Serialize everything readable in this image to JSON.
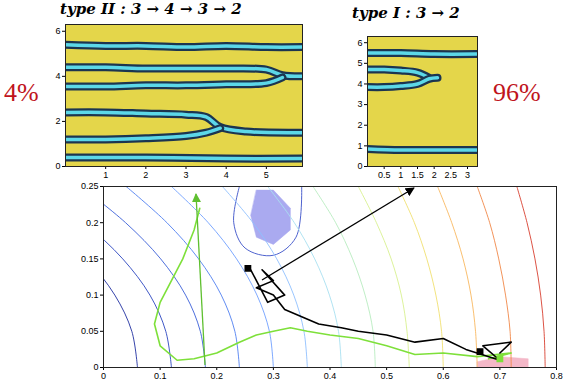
{
  "chart_data": [
    {
      "type": "line",
      "title": "type II : 3 → 4 → 3 → 2",
      "annotations": [
        "4%"
      ],
      "color": "#e4d64a",
      "xlim": [
        0,
        5.9
      ],
      "xticks": [
        1,
        2,
        3,
        4,
        5
      ],
      "ylim": [
        0,
        6.3
      ],
      "yticks": [
        0,
        2,
        4,
        6
      ],
      "series": [
        {
          "color": "#5cd8e8",
          "x": [
            0,
            1,
            2,
            3,
            4,
            5,
            5.9
          ],
          "y": [
            5.4,
            5.35,
            5.35,
            5.3,
            5.35,
            5.3,
            5.3
          ]
        },
        {
          "color": "#5cd8e8",
          "x": [
            0,
            1,
            2,
            3,
            4,
            5,
            5.4,
            5.9
          ],
          "y": [
            4.4,
            4.4,
            4.35,
            4.35,
            4.35,
            4.3,
            4.05,
            4.0
          ]
        },
        {
          "color": "#5cd8e8",
          "x": [
            0,
            1,
            2,
            3,
            4,
            5,
            5.4
          ],
          "y": [
            3.55,
            3.55,
            3.6,
            3.6,
            3.65,
            3.7,
            3.95
          ]
        },
        {
          "color": "#5cd8e8",
          "x": [
            0,
            1,
            2,
            3,
            3.5,
            3.85,
            4.5,
            5.9
          ],
          "y": [
            2.4,
            2.4,
            2.35,
            2.3,
            2.2,
            1.75,
            1.55,
            1.5
          ]
        },
        {
          "color": "#5cd8e8",
          "x": [
            0,
            1,
            2,
            3,
            3.5,
            3.85
          ],
          "y": [
            1.2,
            1.2,
            1.25,
            1.35,
            1.5,
            1.7
          ]
        },
        {
          "color": "#5cd8e8",
          "x": [
            0,
            2,
            4,
            5.9
          ],
          "y": [
            0.4,
            0.4,
            0.35,
            0.35
          ]
        }
      ]
    },
    {
      "type": "line",
      "title": "type I : 3 → 2",
      "annotations": [
        "96%"
      ],
      "color": "#e4d64a",
      "xlim": [
        0,
        3.3
      ],
      "xticks": [
        0.5,
        1,
        1.5,
        2,
        2.5,
        3
      ],
      "ylim": [
        0,
        6.3
      ],
      "yticks": [
        0,
        1,
        2,
        3,
        4,
        5,
        6
      ],
      "series": [
        {
          "color": "#5cd8e8",
          "x": [
            0,
            1,
            2,
            3.3
          ],
          "y": [
            5.5,
            5.5,
            5.45,
            5.45
          ]
        },
        {
          "color": "#5cd8e8",
          "x": [
            0,
            0.5,
            1,
            1.5,
            1.85
          ],
          "y": [
            4.7,
            4.7,
            4.65,
            4.55,
            4.3
          ]
        },
        {
          "color": "#5cd8e8",
          "x": [
            0,
            0.5,
            1,
            1.5,
            1.85,
            2.1
          ],
          "y": [
            3.85,
            3.85,
            3.9,
            4.0,
            4.25,
            4.3
          ]
        },
        {
          "color": "#5cd8e8",
          "x": [
            0,
            1,
            2,
            3.3
          ],
          "y": [
            0.85,
            0.8,
            0.8,
            0.8
          ]
        }
      ]
    },
    {
      "type": "contour",
      "xlim": [
        0,
        0.8
      ],
      "xticks": [
        0,
        0.1,
        0.2,
        0.3,
        0.4,
        0.5,
        0.6,
        0.7,
        0.8
      ],
      "ylim": [
        0,
        0.25
      ],
      "yticks": [
        0,
        0.05,
        0.1,
        0.15,
        0.2,
        0.25
      ],
      "series": [
        {
          "type": "area",
          "color": "#aaaaf0",
          "x": [
            0.27,
            0.3,
            0.33,
            0.33,
            0.3,
            0.27,
            0.26
          ],
          "y": [
            0.245,
            0.245,
            0.22,
            0.19,
            0.17,
            0.18,
            0.21
          ]
        },
        {
          "type": "area",
          "color": "#f4b8c8",
          "x": [
            0.66,
            0.7,
            0.75,
            0.75,
            0.7,
            0.66
          ],
          "y": [
            0,
            0,
            0,
            0.012,
            0.015,
            0.008
          ]
        },
        {
          "type": "line",
          "color": "#1f2fa0",
          "x": [
            0.06,
            0.05,
            0.02,
            -0.03,
            -0.1,
            -0.19
          ],
          "y": [
            0,
            0.05,
            0.1,
            0.15,
            0.2,
            0.25
          ]
        },
        {
          "type": "line",
          "color": "#2a45c0",
          "x": [
            0.12,
            0.11,
            0.082,
            0.034,
            -0.034,
            -0.12
          ],
          "y": [
            0,
            0.05,
            0.1,
            0.15,
            0.2,
            0.25
          ]
        },
        {
          "type": "line",
          "color": "#3a5fd8",
          "x": [
            0.18,
            0.171,
            0.145,
            0.101,
            0.039,
            -0.04
          ],
          "y": [
            0,
            0.05,
            0.1,
            0.15,
            0.2,
            0.25
          ]
        },
        {
          "type": "line",
          "color": "#4f7ff0",
          "x": [
            0.24,
            0.232,
            0.208,
            0.168,
            0.112,
            0.04
          ],
          "y": [
            0,
            0.05,
            0.1,
            0.15,
            0.2,
            0.25
          ]
        },
        {
          "type": "line",
          "color": "#3a50c8",
          "x": [
            0.24,
            0.23,
            0.25,
            0.3,
            0.34,
            0.35
          ],
          "y": [
            0.25,
            0.2,
            0.165,
            0.155,
            0.18,
            0.25
          ]
        },
        {
          "type": "line",
          "color": "#6f9fff",
          "x": [
            0.3,
            0.293,
            0.271,
            0.235,
            0.185,
            0.12
          ],
          "y": [
            0,
            0.05,
            0.1,
            0.15,
            0.2,
            0.25
          ]
        },
        {
          "type": "line",
          "color": "#8fc0ff",
          "x": [
            0.36,
            0.354,
            0.336,
            0.306,
            0.264,
            0.21
          ],
          "y": [
            0,
            0.05,
            0.1,
            0.15,
            0.2,
            0.25
          ]
        },
        {
          "type": "line",
          "color": "#a8e0f0",
          "x": [
            0.42,
            0.415,
            0.399,
            0.373,
            0.337,
            0.29
          ],
          "y": [
            0,
            0.05,
            0.1,
            0.15,
            0.2,
            0.25
          ]
        },
        {
          "type": "line",
          "color": "#b8ecc0",
          "x": [
            0.48,
            0.476,
            0.462,
            0.44,
            0.41,
            0.37
          ],
          "y": [
            0,
            0.05,
            0.1,
            0.15,
            0.2,
            0.25
          ]
        },
        {
          "type": "line",
          "color": "#d8f090",
          "x": [
            0.54,
            0.536,
            0.526,
            0.508,
            0.482,
            0.45
          ],
          "y": [
            0,
            0.05,
            0.1,
            0.15,
            0.2,
            0.25
          ]
        },
        {
          "type": "line",
          "color": "#f0e070",
          "x": [
            0.6,
            0.597,
            0.587,
            0.571,
            0.549,
            0.52
          ],
          "y": [
            0,
            0.05,
            0.1,
            0.15,
            0.2,
            0.25
          ]
        },
        {
          "type": "line",
          "color": "#f8b860",
          "x": [
            0.66,
            0.657,
            0.649,
            0.635,
            0.615,
            0.59
          ],
          "y": [
            0,
            0.05,
            0.1,
            0.15,
            0.2,
            0.25
          ]
        },
        {
          "type": "line",
          "color": "#f08848",
          "x": [
            0.72,
            0.718,
            0.71,
            0.698,
            0.682,
            0.66
          ],
          "y": [
            0,
            0.05,
            0.1,
            0.15,
            0.2,
            0.25
          ]
        },
        {
          "type": "line",
          "color": "#d84030",
          "x": [
            0.78,
            0.778,
            0.772,
            0.762,
            0.748,
            0.73
          ],
          "y": [
            0,
            0.05,
            0.1,
            0.15,
            0.2,
            0.25
          ]
        },
        {
          "type": "line",
          "line_style": "bold",
          "color": "#7ee03a",
          "x": [
            0.68,
            0.72,
            0.66,
            0.6,
            0.55,
            0.5,
            0.45,
            0.4,
            0.36,
            0.33,
            0.3,
            0.27,
            0.24,
            0.2,
            0.16,
            0.13,
            0.1,
            0.09,
            0.1,
            0.12,
            0.14,
            0.16,
            0.17
          ],
          "y": [
            0.012,
            0.02,
            0.015,
            0.02,
            0.018,
            0.03,
            0.04,
            0.045,
            0.05,
            0.055,
            0.05,
            0.045,
            0.035,
            0.02,
            0.012,
            0.01,
            0.03,
            0.06,
            0.09,
            0.12,
            0.15,
            0.19,
            0.22
          ]
        },
        {
          "type": "line",
          "line_style": "bold",
          "color": "#000000",
          "x": [
            0.7,
            0.72,
            0.67,
            0.7,
            0.64,
            0.6,
            0.55,
            0.5,
            0.45,
            0.42,
            0.38,
            0.35,
            0.32,
            0.3,
            0.27,
            0.3,
            0.28,
            0.32,
            0.29,
            0.26
          ],
          "y": [
            0.02,
            0.035,
            0.03,
            0.01,
            0.025,
            0.04,
            0.035,
            0.045,
            0.05,
            0.055,
            0.06,
            0.07,
            0.08,
            0.1,
            0.11,
            0.12,
            0.135,
            0.1,
            0.09,
            0.135
          ]
        },
        {
          "type": "scatter",
          "marker": "square",
          "color": "#7ee03a",
          "x": [
            0.7
          ],
          "y": [
            0.012
          ]
        },
        {
          "type": "scatter",
          "marker": "square",
          "color": "#000000",
          "x": [
            0.665,
            0.255
          ],
          "y": [
            0.022,
            0.137
          ]
        }
      ]
    }
  ]
}
